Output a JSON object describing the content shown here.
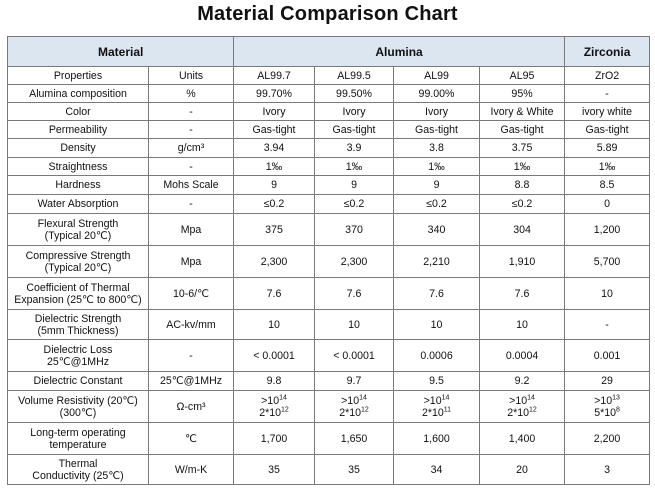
{
  "title": "Material Comparison Chart",
  "header": {
    "material": "Material",
    "alumina": "Alumina",
    "zirconia": "Zirconia"
  },
  "rows": [
    {
      "prop": "Properties",
      "unit": "Units",
      "vals": [
        "AL99.7",
        "AL99.5",
        "AL99",
        "AL95",
        "ZrO2"
      ]
    },
    {
      "prop": "Alumina composition",
      "unit": "%",
      "vals": [
        "99.70%",
        "99.50%",
        "99.00%",
        "95%",
        "-"
      ]
    },
    {
      "prop": "Color",
      "unit": "-",
      "vals": [
        "Ivory",
        "Ivory",
        "Ivory",
        "Ivory & White",
        "ivory white"
      ]
    },
    {
      "prop": "Permeability",
      "unit": "-",
      "vals": [
        "Gas-tight",
        "Gas-tight",
        "Gas-tight",
        "Gas-tight",
        "Gas-tight"
      ]
    },
    {
      "prop": "Density",
      "unit": "g/cm³",
      "vals": [
        "3.94",
        "3.9",
        "3.8",
        "3.75",
        "5.89"
      ]
    },
    {
      "prop": "Straightness",
      "unit": "-",
      "vals": [
        "1‰",
        "1‰",
        "1‰",
        "1‰",
        "1‰"
      ]
    },
    {
      "prop": "Hardness",
      "unit": "Mohs Scale",
      "vals": [
        "9",
        "9",
        "9",
        "8.8",
        "8.5"
      ]
    },
    {
      "prop": "Water Absorption",
      "unit": "-",
      "vals": [
        "≤0.2",
        "≤0.2",
        "≤0.2",
        "≤0.2",
        "0"
      ]
    },
    {
      "prop": "Flexural Strength (Typical 20℃)",
      "unit": "Mpa",
      "vals": [
        "375",
        "370",
        "340",
        "304",
        "1,200"
      ]
    },
    {
      "prop": "Compressive Strength (Typical 20℃)",
      "unit": "Mpa",
      "vals": [
        "2,300",
        "2,300",
        "2,210",
        "1,910",
        "5,700"
      ]
    },
    {
      "prop": "Coefficient of Thermal Expansion (25℃ to 800℃)",
      "unit": "10-6/℃",
      "vals": [
        "7.6",
        "7.6",
        "7.6",
        "7.6",
        "10"
      ]
    },
    {
      "prop": "Dielectric Strength (5mm Thickness)",
      "unit": "AC-kv/mm",
      "vals": [
        "10",
        "10",
        "10",
        "10",
        "-"
      ]
    },
    {
      "prop": "Dielectric Loss 25℃@1MHz",
      "unit": "-",
      "vals": [
        "< 0.0001",
        "< 0.0001",
        "0.0006",
        "0.0004",
        "0.001"
      ]
    },
    {
      "prop": "Dielectric Constant",
      "unit": "25℃@1MHz",
      "vals": [
        "9.8",
        "9.7",
        "9.5",
        "9.2",
        "29"
      ]
    },
    {
      "prop": "Volume Resistivity (20℃) (300℃)",
      "unit": "Ω-cm³",
      "vals": [
        {
          "a": ">10",
          "a_exp": "14",
          "b": "2*10",
          "b_exp": "12"
        },
        {
          "a": ">10",
          "a_exp": "14",
          "b": "2*10",
          "b_exp": "12"
        },
        {
          "a": ">10",
          "a_exp": "14",
          "b": "2*10",
          "b_exp": "11"
        },
        {
          "a": ">10",
          "a_exp": "14",
          "b": "2*10",
          "b_exp": "12"
        },
        {
          "a": ">10",
          "a_exp": "13",
          "b": "5*10",
          "b_exp": "8"
        }
      ]
    },
    {
      "prop": "Long-term operating temperature",
      "unit": "℃",
      "vals": [
        "1,700",
        "1,650",
        "1,600",
        "1,400",
        "2,200"
      ]
    },
    {
      "prop": "Thermal Conductivity (25℃)",
      "unit": "W/m-K",
      "vals": [
        "35",
        "35",
        "34",
        "20",
        "3"
      ]
    }
  ]
}
